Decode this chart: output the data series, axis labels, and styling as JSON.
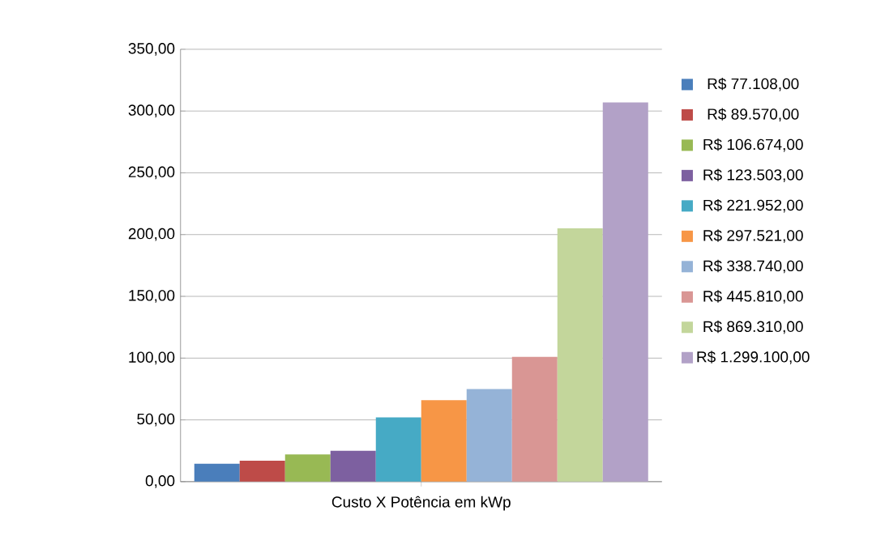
{
  "chart_data": {
    "type": "bar",
    "xlabel": "Custo X Potência em kWp",
    "categories": [
      null
    ],
    "series": [
      {
        "name": "R$ 77.108,00",
        "color": "#4a7ebb",
        "values": [
          14.5
        ]
      },
      {
        "name": "R$ 89.570,00",
        "color": "#be4b48",
        "values": [
          17
        ]
      },
      {
        "name": "R$ 106.674,00",
        "color": "#98b954",
        "values": [
          22
        ]
      },
      {
        "name": "R$ 123.503,00",
        "color": "#7d60a0",
        "values": [
          25
        ]
      },
      {
        "name": "R$ 221.952,00",
        "color": "#46aac5",
        "values": [
          52
        ]
      },
      {
        "name": "R$ 297.521,00",
        "color": "#f79646",
        "values": [
          66
        ]
      },
      {
        "name": "R$ 338.740,00",
        "color": "#95b3d7",
        "values": [
          75
        ]
      },
      {
        "name": "R$ 445.810,00",
        "color": "#d99694",
        "values": [
          101
        ]
      },
      {
        "name": "R$ 869.310,00",
        "color": "#c3d69b",
        "values": [
          205
        ]
      },
      {
        "name": "R$ 1.299.100,00",
        "color": "#b2a1c7",
        "values": [
          307
        ]
      }
    ],
    "ylim": [
      0,
      350
    ],
    "yticks": [
      {
        "value": 0,
        "label": "0,00"
      },
      {
        "value": 50,
        "label": "50,00"
      },
      {
        "value": 100,
        "label": "100,00"
      },
      {
        "value": 150,
        "label": "150,00"
      },
      {
        "value": 200,
        "label": "200,00"
      },
      {
        "value": 250,
        "label": "250,00"
      },
      {
        "value": 300,
        "label": "300,00"
      },
      {
        "value": 350,
        "label": "350,00"
      }
    ],
    "grid": "y",
    "legend": "right"
  }
}
